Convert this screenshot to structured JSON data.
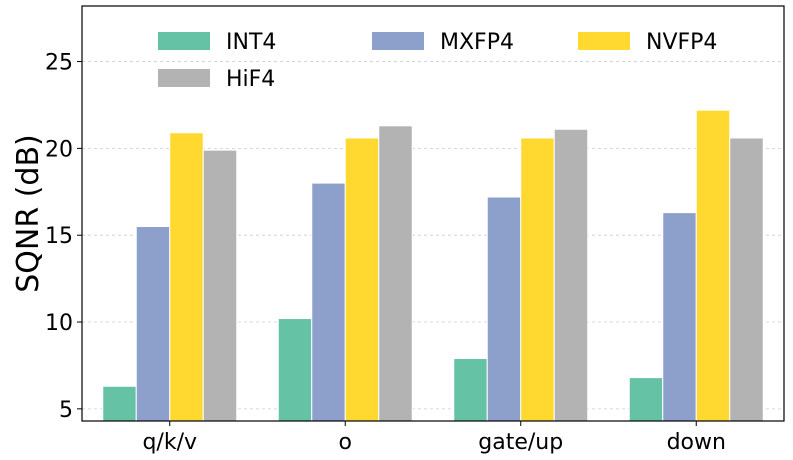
{
  "chart_data": {
    "type": "bar",
    "title": "",
    "xlabel": "",
    "ylabel": "SQNR (dB)",
    "ylim": [
      4.3,
      28.2
    ],
    "yticks": [
      5,
      10,
      15,
      20,
      25
    ],
    "grid": true,
    "legend_position": "top",
    "categories": [
      "q/k/v",
      "o",
      "gate/up",
      "down"
    ],
    "series": [
      {
        "name": "INT4",
        "color": "#66c2a5",
        "values": [
          6.3,
          10.2,
          7.9,
          6.8
        ]
      },
      {
        "name": "MXFP4",
        "color": "#8da0cb",
        "values": [
          15.5,
          18.0,
          17.2,
          16.3
        ]
      },
      {
        "name": "NVFP4",
        "color": "#ffd92f",
        "values": [
          20.9,
          20.6,
          20.6,
          22.2
        ]
      },
      {
        "name": "HiF4",
        "color": "#b3b3b3",
        "values": [
          19.9,
          21.3,
          21.1,
          20.6
        ]
      }
    ]
  }
}
